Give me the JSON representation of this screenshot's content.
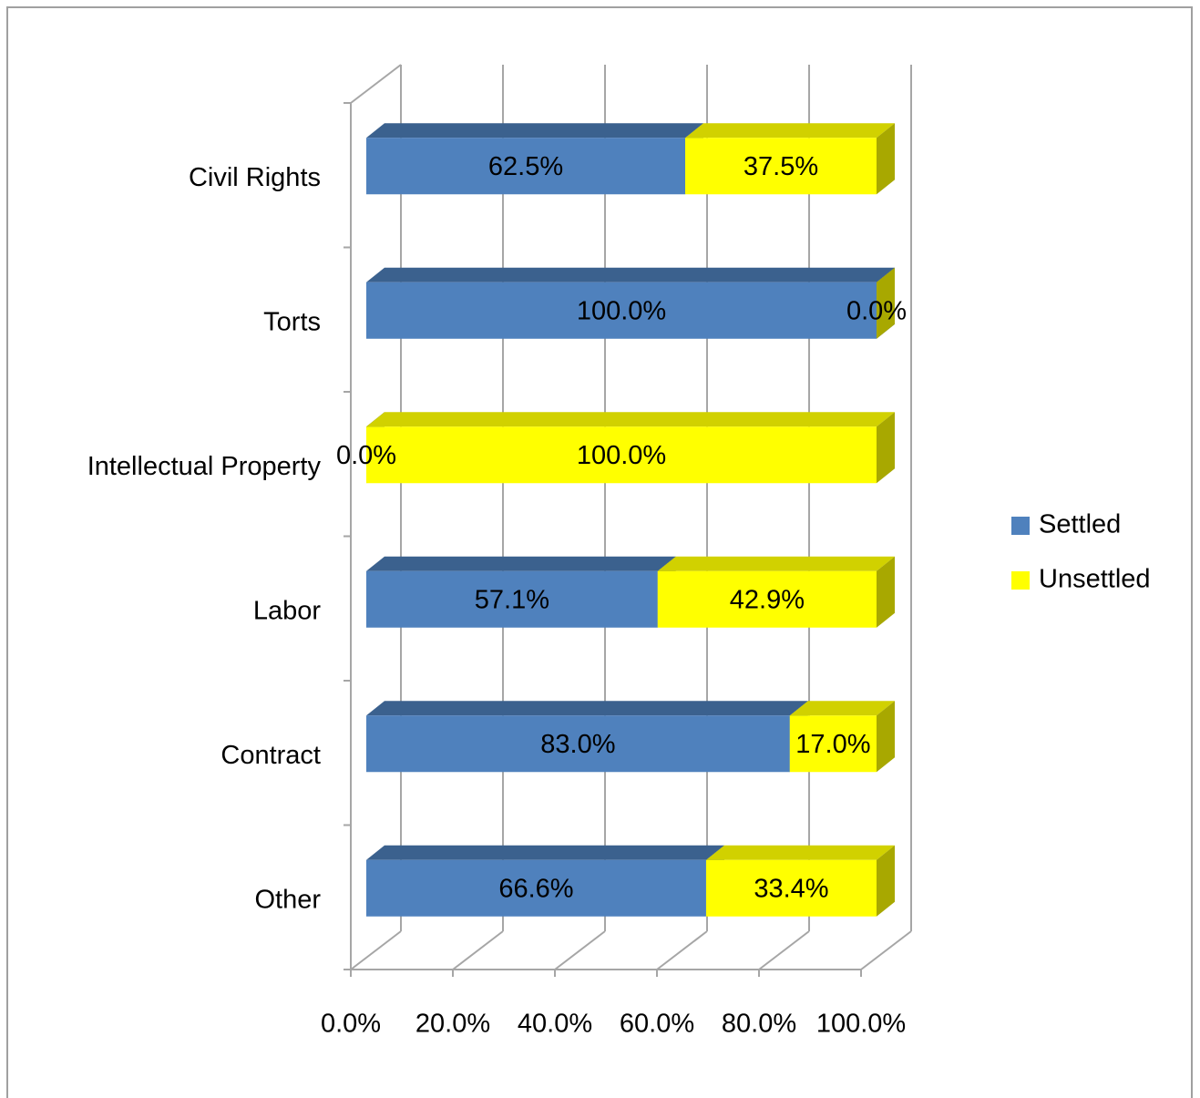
{
  "chart_data": {
    "type": "bar3d_stacked_horizontal",
    "categories": [
      "Civil Rights",
      "Torts",
      "Intellectual Property",
      "Labor",
      "Contract",
      "Other"
    ],
    "series": [
      {
        "name": "Settled",
        "color": "#4f81bd",
        "values": [
          62.5,
          100,
          0,
          57.1,
          83.0,
          66.6
        ],
        "value_labels": [
          "62.5%",
          "100.0%",
          "0.0%",
          "57.1%",
          "83.0%",
          "66.6%"
        ]
      },
      {
        "name": "Unsettled",
        "color": "#ffff00",
        "values": [
          37.5,
          0,
          100,
          42.9,
          17.0,
          33.4
        ],
        "value_labels": [
          "37.5%",
          "0.0%",
          "100.0%",
          "42.9%",
          "17.0%",
          "33.4%"
        ]
      }
    ],
    "xlim": [
      0,
      100
    ],
    "xticks": [
      {
        "value": 0,
        "label": "0.0%"
      },
      {
        "value": 20,
        "label": "20.0%"
      },
      {
        "value": 40,
        "label": "40.0%"
      },
      {
        "value": 60,
        "label": "60.0%"
      },
      {
        "value": 80,
        "label": "80.0%"
      },
      {
        "value": 100,
        "label": "100.0%"
      }
    ],
    "grid": true,
    "legend": "right"
  }
}
